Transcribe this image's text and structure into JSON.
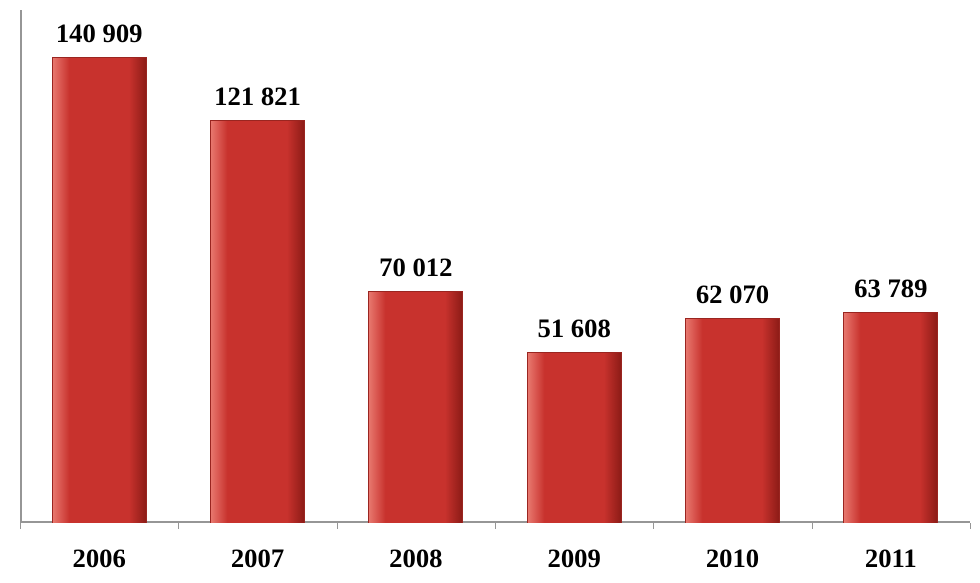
{
  "chart": {
    "type": "bar",
    "categories": [
      "2006",
      "2007",
      "2008",
      "2009",
      "2010",
      "2011"
    ],
    "values": [
      140909,
      121821,
      70012,
      51608,
      62070,
      63789
    ],
    "value_labels": [
      "140 909",
      "121 821",
      "70 012",
      "51 608",
      "62 070",
      "63 789"
    ],
    "ylim_max": 155000,
    "bar_fill": "#c8322d",
    "bar_edge_gradient_light": "#e8786f",
    "bar_edge_gradient_dark": "#8e1c17",
    "bar_border": "#9a2520",
    "axis_color": "#969696",
    "bar_width_pct": 60,
    "label_fontsize_pt": 20,
    "xlabel_fontsize_pt": 20,
    "xlabel_color": "#000000",
    "value_label_color": "#000000",
    "background_color": "#ffffff",
    "tick_color": "#969696",
    "ticks_between": true
  }
}
